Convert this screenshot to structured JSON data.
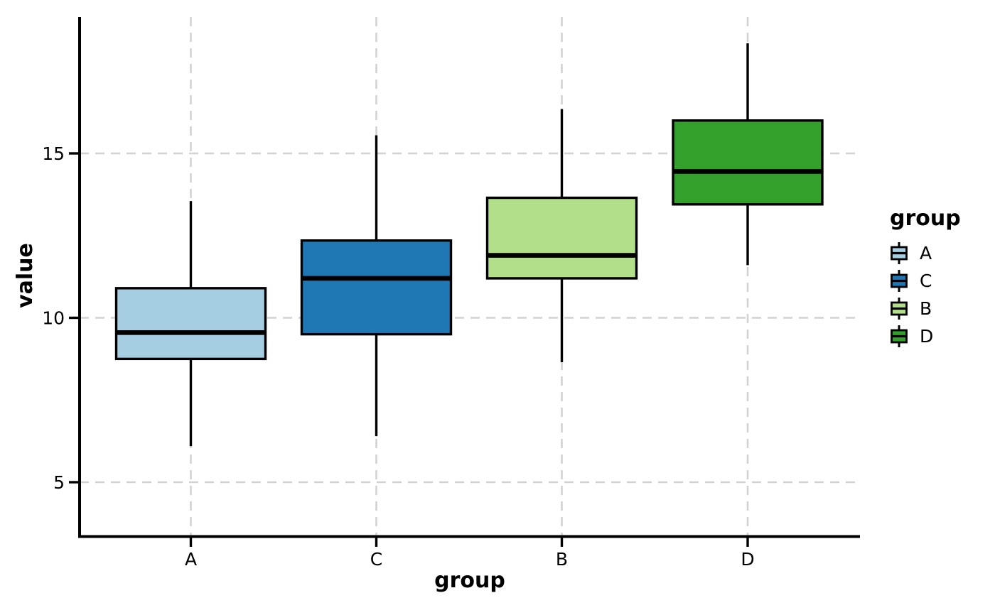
{
  "chart_data": {
    "type": "box",
    "title": "",
    "xlabel": "group",
    "ylabel": "value",
    "categories": [
      "A",
      "C",
      "B",
      "D"
    ],
    "yticks": [
      5,
      10,
      15
    ],
    "ylim": [
      3.4,
      19.1
    ],
    "grid": "dashed",
    "legend_position": "right",
    "series": [
      {
        "name": "A",
        "color": "#a6cee3",
        "whisker_low": 6.1,
        "q1": 8.75,
        "median": 9.55,
        "q3": 10.9,
        "whisker_high": 13.55
      },
      {
        "name": "C",
        "color": "#1f78b4",
        "whisker_low": 6.4,
        "q1": 9.5,
        "median": 11.2,
        "q3": 12.35,
        "whisker_high": 15.55
      },
      {
        "name": "B",
        "color": "#b2df8a",
        "whisker_low": 8.65,
        "q1": 11.2,
        "median": 11.9,
        "q3": 13.65,
        "whisker_high": 16.35
      },
      {
        "name": "D",
        "color": "#33a02c",
        "whisker_low": 11.6,
        "q1": 13.45,
        "median": 14.45,
        "q3": 16.0,
        "whisker_high": 18.35
      }
    ],
    "legend": {
      "title": "group",
      "entries": [
        {
          "label": "A",
          "color": "#a6cee3"
        },
        {
          "label": "C",
          "color": "#1f78b4"
        },
        {
          "label": "B",
          "color": "#b2df8a"
        },
        {
          "label": "D",
          "color": "#33a02c"
        }
      ]
    },
    "colors": {
      "axis": "#000000",
      "grid": "#d2d2d2",
      "text": "#000000",
      "box_stroke": "#000000"
    }
  }
}
